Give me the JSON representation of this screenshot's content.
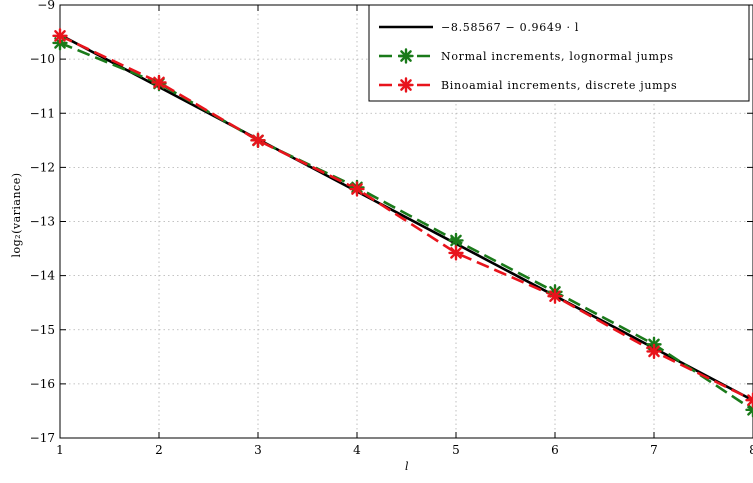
{
  "chart_data": {
    "type": "line",
    "xlabel": "l",
    "ylabel": "log₂(variance)",
    "xlim": [
      1,
      8
    ],
    "ylim": [
      -17,
      -9
    ],
    "x_ticks": [
      "1",
      "2",
      "3",
      "4",
      "5",
      "6",
      "7",
      "8"
    ],
    "y_ticks": [
      "−9",
      "−10",
      "−11",
      "−12",
      "−13",
      "−14",
      "−15",
      "−16",
      "−17"
    ],
    "grid": true,
    "legend_position": "top-right",
    "x": [
      1,
      2,
      3,
      4,
      5,
      6,
      7,
      8
    ],
    "series": [
      {
        "name": "−8.58567 − 0.9649 · l",
        "style": "solid",
        "marker": "none",
        "color": "#000000",
        "values": [
          -9.55057,
          -10.51547,
          -11.48037,
          -12.44527,
          -13.41017,
          -14.37507,
          -15.33997,
          -16.30487
        ]
      },
      {
        "name": "Normal increments, lognormal jumps",
        "style": "dashed",
        "marker": "asterisk",
        "color": "#1a7a1a",
        "values": [
          -9.7,
          -10.45,
          -11.5,
          -12.37,
          -13.35,
          -14.3,
          -15.27,
          -16.48
        ]
      },
      {
        "name": "Binoamial increments, discrete jumps",
        "style": "dashed",
        "marker": "asterisk",
        "color": "#e8141c",
        "values": [
          -9.57,
          -10.43,
          -11.5,
          -12.4,
          -13.58,
          -14.38,
          -15.4,
          -16.3
        ]
      }
    ]
  }
}
